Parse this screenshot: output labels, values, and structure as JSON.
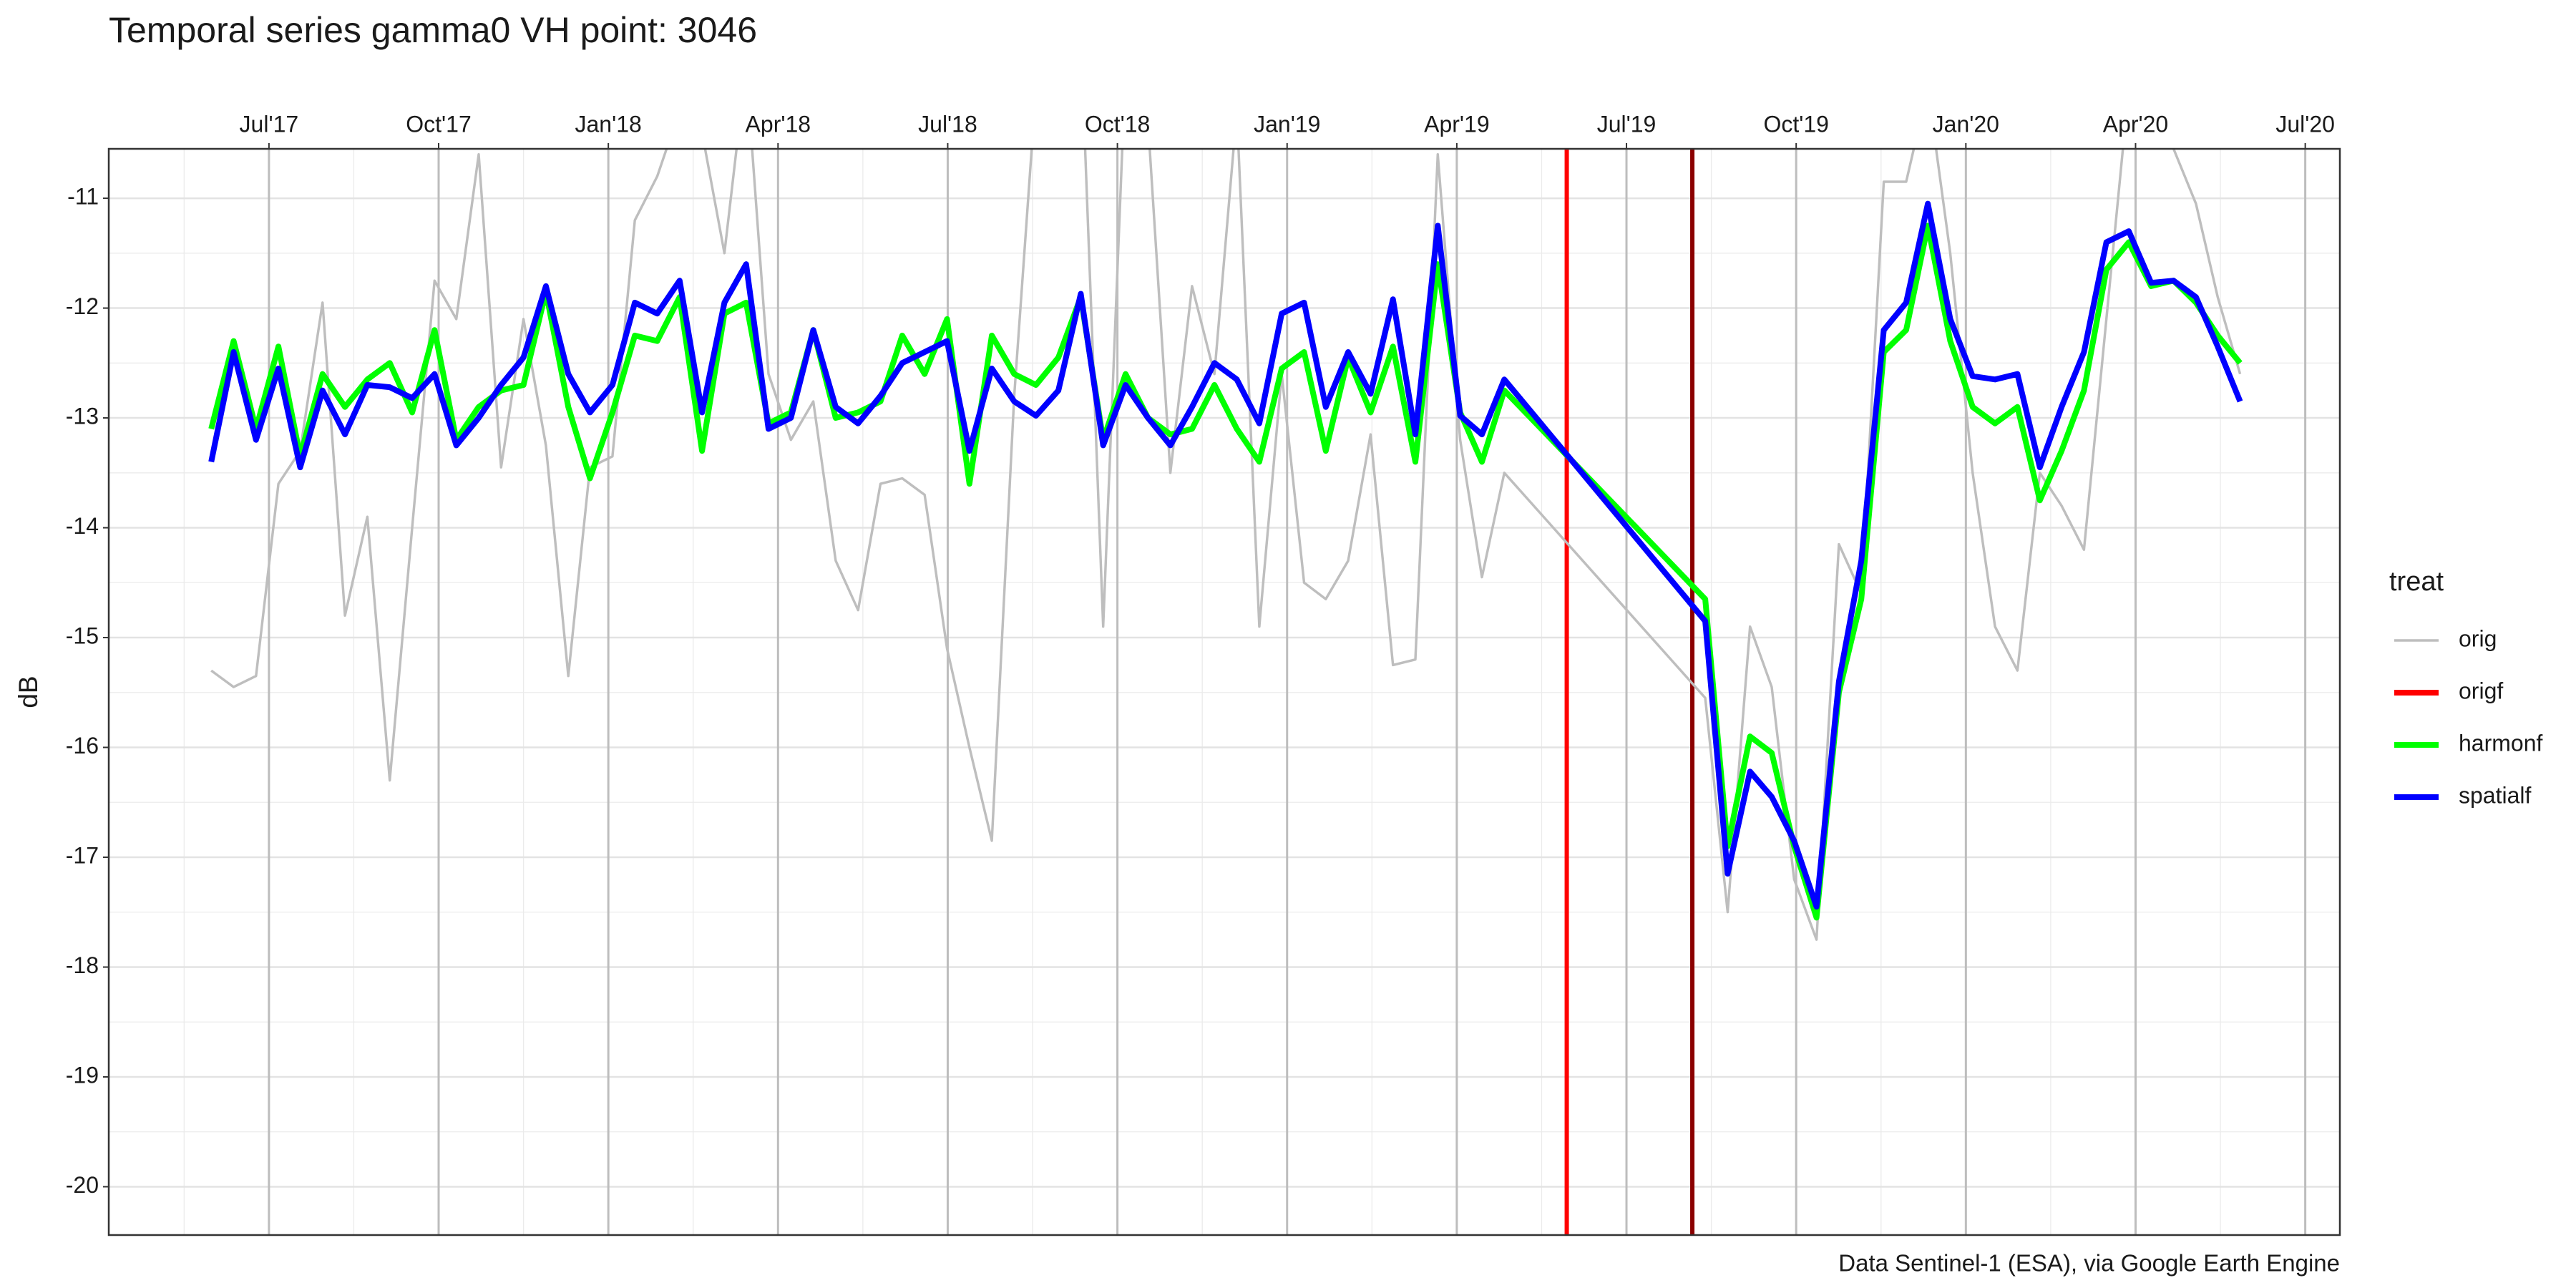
{
  "chart_data": {
    "type": "line",
    "title": "Temporal series gamma0 VH point: 3046",
    "y_label": "dB",
    "caption": "Data Sentinel-1 (ESA), via Google Earth Engine",
    "x": [
      2017.415,
      2017.448,
      2017.481,
      2017.514,
      2017.546,
      2017.579,
      2017.612,
      2017.645,
      2017.678,
      2017.711,
      2017.744,
      2017.776,
      2017.809,
      2017.842,
      2017.875,
      2017.908,
      2017.941,
      2017.973,
      2018.006,
      2018.039,
      2018.072,
      2018.105,
      2018.138,
      2018.171,
      2018.203,
      2018.236,
      2018.269,
      2018.302,
      2018.335,
      2018.368,
      2018.401,
      2018.433,
      2018.466,
      2018.499,
      2018.532,
      2018.565,
      2018.598,
      2018.63,
      2018.663,
      2018.696,
      2018.729,
      2018.762,
      2018.795,
      2018.828,
      2018.86,
      2018.893,
      2018.926,
      2018.959,
      2018.992,
      2019.025,
      2019.057,
      2019.09,
      2019.123,
      2019.156,
      2019.189,
      2019.222,
      2019.255,
      2019.287,
      2019.32,
      2019.616,
      2019.649,
      2019.682,
      2019.714,
      2019.747,
      2019.78,
      2019.813,
      2019.846,
      2019.879,
      2019.912,
      2019.944,
      2019.977,
      2020.01,
      2020.043,
      2020.076,
      2020.109,
      2020.141,
      2020.174,
      2020.207,
      2020.24,
      2020.273,
      2020.306,
      2020.339,
      2020.371,
      2020.404
    ],
    "series": [
      {
        "name": "orig",
        "color": "#bebebe",
        "width": 1.5,
        "values": [
          -15.3,
          -15.45,
          -15.35,
          -13.6,
          -13.3,
          -11.95,
          -14.8,
          -13.9,
          -16.3,
          -14.0,
          -11.75,
          -12.1,
          -10.6,
          -13.45,
          -12.1,
          -13.25,
          -15.35,
          -13.45,
          -13.35,
          -11.2,
          -10.8,
          -10.2,
          -10.4,
          -11.5,
          -9.8,
          -12.6,
          -13.2,
          -12.85,
          -14.3,
          -14.75,
          -13.6,
          -13.55,
          -13.7,
          -15.1,
          -16.0,
          -16.85,
          -12.8,
          -10.0,
          -10.3,
          -9.5,
          -14.9,
          -9.8,
          -10.3,
          -13.5,
          -11.8,
          -12.6,
          -10.2,
          -14.9,
          -12.6,
          -14.5,
          -14.65,
          -14.3,
          -13.15,
          -15.25,
          -15.2,
          -10.6,
          -13.2,
          -14.45,
          -13.5,
          -15.55,
          -17.5,
          -14.9,
          -15.45,
          -17.2,
          -17.75,
          -14.15,
          -14.6,
          -10.85,
          -10.85,
          -10.0,
          -11.5,
          -13.5,
          -14.9,
          -15.3,
          -13.5,
          -13.8,
          -14.2,
          -12.1,
          -10.0,
          -10.3,
          -10.55,
          -11.05,
          -11.9,
          -12.6
        ]
      },
      {
        "name": "harmonf",
        "color": "#00ff00",
        "width": 3.5,
        "values": [
          -13.1,
          -12.3,
          -13.1,
          -12.35,
          -13.35,
          -12.6,
          -12.9,
          -12.65,
          -12.5,
          -12.95,
          -12.2,
          -13.2,
          -12.9,
          -12.75,
          -12.7,
          -11.85,
          -12.9,
          -13.55,
          -12.95,
          -12.25,
          -12.3,
          -11.9,
          -13.3,
          -12.05,
          -11.95,
          -13.05,
          -12.95,
          -12.2,
          -13.0,
          -12.95,
          -12.85,
          -12.25,
          -12.6,
          -12.1,
          -13.6,
          -12.25,
          -12.6,
          -12.7,
          -12.45,
          -11.9,
          -13.2,
          -12.6,
          -13.0,
          -13.15,
          -13.1,
          -12.7,
          -13.1,
          -13.4,
          -12.55,
          -12.4,
          -13.3,
          -12.45,
          -12.95,
          -12.35,
          -13.4,
          -11.6,
          -12.95,
          -13.4,
          -12.75,
          -14.65,
          -16.9,
          -15.9,
          -16.05,
          -16.9,
          -17.55,
          -15.5,
          -14.65,
          -12.4,
          -12.2,
          -11.25,
          -12.3,
          -12.9,
          -13.05,
          -12.9,
          -13.75,
          -13.3,
          -12.75,
          -11.65,
          -11.4,
          -11.8,
          -11.75,
          -11.95,
          -12.25,
          -12.5
        ]
      },
      {
        "name": "spatialf",
        "color": "#0000ff",
        "width": 3.5,
        "values": [
          -13.4,
          -12.4,
          -13.2,
          -12.55,
          -13.45,
          -12.75,
          -13.15,
          -12.7,
          -12.72,
          -12.82,
          -12.6,
          -13.25,
          -13.0,
          -12.7,
          -12.45,
          -11.8,
          -12.6,
          -12.95,
          -12.7,
          -11.95,
          -12.05,
          -11.75,
          -12.95,
          -11.95,
          -11.6,
          -13.1,
          -13.0,
          -12.2,
          -12.9,
          -13.05,
          -12.8,
          -12.5,
          -12.4,
          -12.3,
          -13.3,
          -12.55,
          -12.85,
          -12.98,
          -12.75,
          -11.87,
          -13.25,
          -12.7,
          -13.0,
          -13.25,
          -12.9,
          -12.5,
          -12.65,
          -13.05,
          -12.05,
          -11.95,
          -12.9,
          -12.4,
          -12.78,
          -11.92,
          -13.15,
          -11.25,
          -12.98,
          -13.15,
          -12.65,
          -14.85,
          -17.15,
          -16.22,
          -16.45,
          -16.85,
          -17.45,
          -15.4,
          -14.3,
          -12.2,
          -11.95,
          -11.05,
          -12.1,
          -12.62,
          -12.65,
          -12.6,
          -13.45,
          -12.9,
          -12.4,
          -11.4,
          -11.3,
          -11.77,
          -11.75,
          -11.9,
          -12.35,
          -12.85
        ]
      }
    ],
    "legend": {
      "title": "treat",
      "extra": {
        "name": "origf",
        "color": "#ff0000"
      }
    },
    "vlines": [
      {
        "x": 2019.412,
        "color": "#ff0000"
      },
      {
        "x": 2019.597,
        "color": "#8b0000"
      }
    ],
    "xlim": [
      2017.264,
      2020.551
    ],
    "xticks": [
      {
        "value": 2017.5,
        "label": "Jul'17"
      },
      {
        "value": 2017.75,
        "label": "Oct'17"
      },
      {
        "value": 2018.0,
        "label": "Jan'18"
      },
      {
        "value": 2018.25,
        "label": "Apr'18"
      },
      {
        "value": 2018.5,
        "label": "Jul'18"
      },
      {
        "value": 2018.75,
        "label": "Oct'18"
      },
      {
        "value": 2019.0,
        "label": "Jan'19"
      },
      {
        "value": 2019.25,
        "label": "Apr'19"
      },
      {
        "value": 2019.5,
        "label": "Jul'19"
      },
      {
        "value": 2019.75,
        "label": "Oct'19"
      },
      {
        "value": 2020.0,
        "label": "Jan'20"
      },
      {
        "value": 2020.25,
        "label": "Apr'20"
      },
      {
        "value": 2020.5,
        "label": "Jul'20"
      }
    ],
    "ylim": [
      -20.44,
      -10.55
    ],
    "yticks": [
      -11,
      -12,
      -13,
      -14,
      -15,
      -16,
      -17,
      -18,
      -19,
      -20
    ],
    "grid": true
  }
}
